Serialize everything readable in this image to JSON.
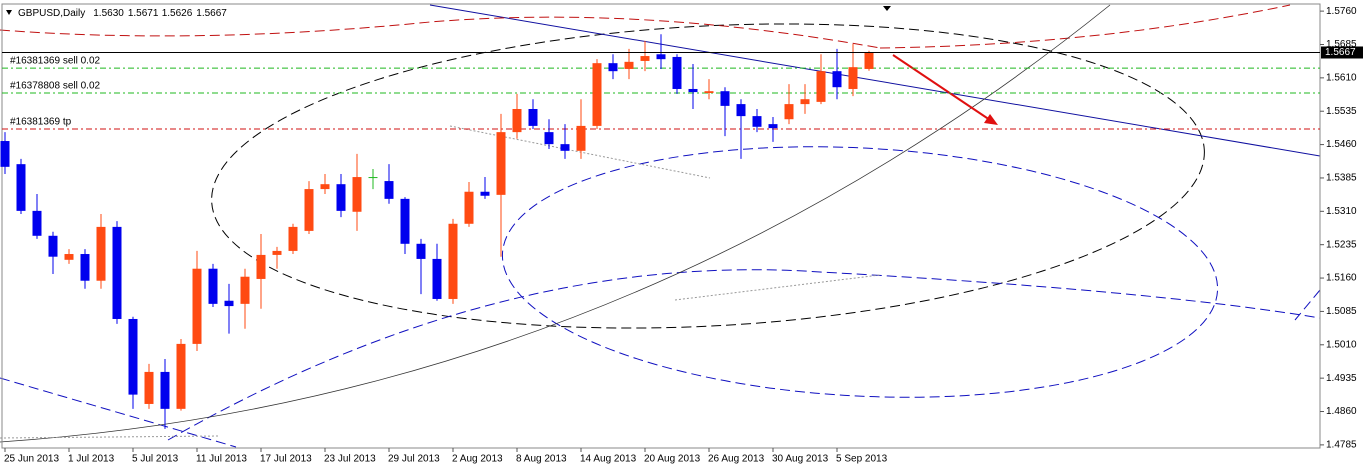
{
  "chart_data": {
    "type": "candlestick",
    "symbol": "GBPUSD,Daily",
    "header_values": [
      "1.5630",
      "1.5671",
      "1.5626",
      "1.5667"
    ],
    "categories": [
      "25 Jun 2013",
      null,
      null,
      null,
      "1 Jul 2013",
      null,
      null,
      null,
      "5 Jul 2013",
      null,
      null,
      null,
      "11 Jul 2013",
      null,
      null,
      null,
      "17 Jul 2013",
      null,
      null,
      null,
      "23 Jul 2013",
      null,
      null,
      null,
      "29 Jul 2013",
      null,
      null,
      null,
      "2 Aug 2013",
      null,
      null,
      null,
      "8 Aug 2013",
      null,
      null,
      null,
      "14 Aug 2013",
      null,
      null,
      null,
      "20 Aug 2013",
      null,
      null,
      null,
      "26 Aug 2013",
      null,
      null,
      null,
      "30 Aug 2013",
      null,
      null,
      null,
      "5 Sep 2013",
      null,
      null
    ],
    "open": [
      1.5468,
      1.5416,
      1.5311,
      1.5255,
      1.5201,
      1.5214,
      1.5154,
      1.5275,
      1.5068,
      1.4877,
      1.4949,
      1.4866,
      1.5012,
      1.5181,
      1.5109,
      1.5102,
      1.5158,
      1.5212,
      1.5221,
      1.5266,
      1.536,
      1.5371,
      1.5309,
      1.5387,
      1.5378,
      1.5338,
      1.5237,
      1.5203,
      1.5113,
      1.5282,
      1.5354,
      1.5347,
      1.5488,
      1.554,
      1.5488,
      1.5461,
      1.5446,
      1.5502,
      1.5643,
      1.563,
      1.5648,
      1.5663,
      1.5657,
      1.5585,
      1.5576,
      1.558,
      1.5551,
      1.5524,
      1.5506,
      1.5517,
      1.5551,
      1.5556,
      1.5625,
      1.5585,
      1.563
    ],
    "high": [
      1.5488,
      1.5428,
      1.5349,
      1.5264,
      1.5225,
      1.5225,
      1.5304,
      1.5288,
      1.5073,
      1.4967,
      1.4978,
      1.5023,
      1.5221,
      1.5192,
      1.5147,
      1.5181,
      1.5259,
      1.523,
      1.5282,
      1.5378,
      1.5394,
      1.5394,
      1.5439,
      1.5405,
      1.5416,
      1.5342,
      1.5248,
      1.5237,
      1.5293,
      1.5376,
      1.5387,
      1.5529,
      1.5574,
      1.5562,
      1.5517,
      1.5506,
      1.5562,
      1.5652,
      1.5663,
      1.5675,
      1.5693,
      1.5708,
      1.5663,
      1.5641,
      1.5607,
      1.5589,
      1.5562,
      1.554,
      1.5522,
      1.5596,
      1.5596,
      1.5663,
      1.5675,
      1.5686,
      1.5671
    ],
    "low": [
      1.5394,
      1.5304,
      1.5248,
      1.5169,
      1.5192,
      1.5136,
      1.5136,
      1.5057,
      1.4866,
      1.4866,
      1.4821,
      1.4862,
      1.4996,
      1.5095,
      1.5035,
      1.5046,
      1.5091,
      1.5181,
      1.5214,
      1.5259,
      1.5349,
      1.5297,
      1.5266,
      1.536,
      1.5327,
      1.5214,
      1.5124,
      1.5109,
      1.5102,
      1.5275,
      1.5338,
      1.5208,
      1.5473,
      1.5495,
      1.545,
      1.5428,
      1.5428,
      1.5495,
      1.5607,
      1.5607,
      1.5625,
      1.563,
      1.5574,
      1.554,
      1.5562,
      1.5479,
      1.5428,
      1.5488,
      1.5466,
      1.5506,
      1.5529,
      1.5551,
      1.5562,
      1.5569,
      1.5626
    ],
    "close": [
      1.541,
      1.5311,
      1.5255,
      1.5208,
      1.5214,
      1.5154,
      1.5275,
      1.5068,
      1.4898,
      1.4949,
      1.4866,
      1.5012,
      1.5181,
      1.5102,
      1.5097,
      1.5163,
      1.5212,
      1.5221,
      1.5275,
      1.536,
      1.5371,
      1.5311,
      1.5387,
      1.5387,
      1.5338,
      1.5237,
      1.5203,
      1.5113,
      1.5282,
      1.5354,
      1.5345,
      1.5488,
      1.554,
      1.5502,
      1.5461,
      1.5446,
      1.5502,
      1.5643,
      1.5625,
      1.5646,
      1.5659,
      1.5652,
      1.5585,
      1.5578,
      1.558,
      1.5547,
      1.5524,
      1.55,
      1.5497,
      1.5551,
      1.5562,
      1.5625,
      1.5589,
      1.5634,
      1.5667
    ],
    "up_color": "#ff4a12",
    "down_color": "#0000ee",
    "doji_color": "#1fb81f",
    "ylim": [
      1.4778,
      1.5776
    ],
    "yticks": [
      {
        "value": 1.576,
        "label": "1.5760"
      },
      {
        "value": 1.5685,
        "label": "1.5685"
      },
      {
        "value": 1.561,
        "label": "1.5610"
      },
      {
        "value": 1.5535,
        "label": "1.5535"
      },
      {
        "value": 1.546,
        "label": "1.5460"
      },
      {
        "value": 1.5385,
        "label": "1.5385"
      },
      {
        "value": 1.531,
        "label": "1.5310"
      },
      {
        "value": 1.5235,
        "label": "1.5235"
      },
      {
        "value": 1.516,
        "label": "1.5160"
      },
      {
        "value": 1.5085,
        "label": "1.5085"
      },
      {
        "value": 1.501,
        "label": "1.5010"
      },
      {
        "value": 1.4935,
        "label": "1.4935"
      },
      {
        "value": 1.486,
        "label": "1.4860"
      },
      {
        "value": 1.4785,
        "label": "1.4785"
      }
    ],
    "current_price": {
      "value": 1.5667,
      "label": "1.5667"
    },
    "levels": [
      {
        "label": "#16381369 sell 0.02",
        "value": 1.5632,
        "color": "#1fb81f"
      },
      {
        "label": "#16378808 sell 0.02",
        "value": 1.5576,
        "color": "#1fb81f"
      },
      {
        "label": "#16381369 tp",
        "value": 1.5495,
        "color": "#d01010"
      }
    ],
    "grid": false
  }
}
